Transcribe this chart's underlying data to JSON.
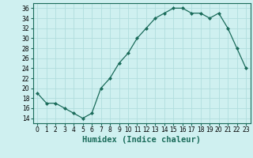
{
  "x": [
    0,
    1,
    2,
    3,
    4,
    5,
    6,
    7,
    8,
    9,
    10,
    11,
    12,
    13,
    14,
    15,
    16,
    17,
    18,
    19,
    20,
    21,
    22,
    23
  ],
  "y": [
    19,
    17,
    17,
    16,
    15,
    14,
    15,
    20,
    22,
    25,
    27,
    30,
    32,
    34,
    35,
    36,
    36,
    35,
    35,
    34,
    35,
    32,
    28,
    24
  ],
  "line_color": "#1a6b5a",
  "marker": "D",
  "marker_size": 2,
  "bg_color": "#cff0f0",
  "grid_color": "#b0dede",
  "xlabel": "Humidex (Indice chaleur)",
  "ylim": [
    13,
    37
  ],
  "xlim": [
    -0.5,
    23.5
  ],
  "yticks": [
    14,
    16,
    18,
    20,
    22,
    24,
    26,
    28,
    30,
    32,
    34,
    36
  ],
  "xticks": [
    0,
    1,
    2,
    3,
    4,
    5,
    6,
    7,
    8,
    9,
    10,
    11,
    12,
    13,
    14,
    15,
    16,
    17,
    18,
    19,
    20,
    21,
    22,
    23
  ],
  "tick_fontsize": 5.5,
  "xlabel_fontsize": 7.5
}
